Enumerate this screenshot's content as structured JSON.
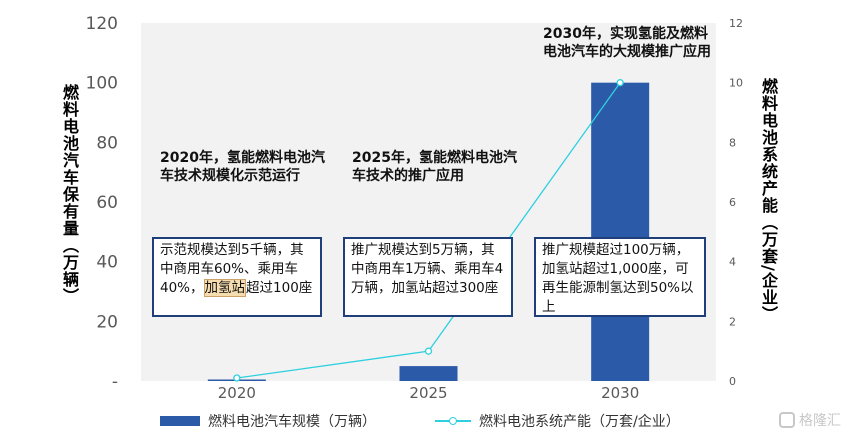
{
  "chart_data": {
    "type": "bar+line",
    "categories": [
      "2020",
      "2025",
      "2030"
    ],
    "series": [
      {
        "name": "燃料电池汽车规模（万辆）",
        "type": "bar",
        "axis": "left",
        "values": [
          0.5,
          5,
          100
        ]
      },
      {
        "name": "燃料电池系统产能（万套/企业）",
        "type": "line",
        "axis": "right",
        "values": [
          0.1,
          1,
          10
        ]
      }
    ],
    "y_left": {
      "label": "燃料电池汽车保有量（万辆）",
      "ticks": [
        "-",
        "20",
        "40",
        "60",
        "80",
        "100",
        "120"
      ],
      "ylim": [
        0,
        120
      ]
    },
    "y_right": {
      "label": "燃料电池系统产能（万套/企业）",
      "ticks": [
        "0",
        "2",
        "4",
        "6",
        "8",
        "10",
        "12"
      ],
      "ylim": [
        0,
        12
      ]
    },
    "legend_position": "bottom",
    "colors": {
      "bar": "#2b5ba8",
      "line": "#2ed0df",
      "plot_bg": "#f2f2f2",
      "box_border": "#1f3f7a"
    },
    "annotations": {
      "milestones": [
        "2020年，氢能燃料电池汽车技术规模化示范运行",
        "2025年，氢能燃料电池汽车技术的推广应用",
        "2030年，实现氢能及燃料电池汽车的大规模推广应用"
      ],
      "notes": [
        {
          "before": "示范规模达到5千辆，其中商用车60%、乘用车40%，",
          "highlight": "加氢站",
          "after": "超过100座"
        },
        {
          "before": "推广规模达到5万辆，其中商用车1万辆、乘用车4万辆，加氢站超过300座",
          "highlight": "",
          "after": ""
        },
        {
          "before": "推广规模超过100万辆，加氢站超过1,000座，可再生能源制氢达到50%以上",
          "highlight": "",
          "after": ""
        }
      ]
    }
  },
  "watermark": {
    "text": "格隆汇",
    "icon": "logo-icon"
  }
}
